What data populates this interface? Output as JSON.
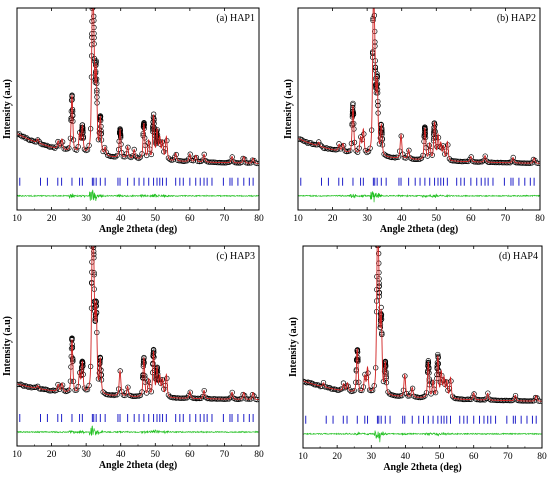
{
  "chart_data": [
    {
      "type": "scatter",
      "panel_label": "(a) HAP1",
      "xlabel": "Angle 2theta (deg)",
      "ylabel": "Intensity (a.u)",
      "xlim": [
        10,
        80
      ],
      "xticks": [
        "10",
        "20",
        "30",
        "40",
        "50",
        "60",
        "70",
        "80"
      ],
      "background": 20,
      "background_slope": 0.6,
      "peaks": [
        {
          "x": 16.0,
          "y": 3
        },
        {
          "x": 21.9,
          "y": 6
        },
        {
          "x": 23.0,
          "y": 8
        },
        {
          "x": 25.9,
          "y": 44
        },
        {
          "x": 28.1,
          "y": 14
        },
        {
          "x": 28.9,
          "y": 20
        },
        {
          "x": 31.8,
          "y": 100
        },
        {
          "x": 32.2,
          "y": 75
        },
        {
          "x": 32.9,
          "y": 62
        },
        {
          "x": 34.1,
          "y": 28
        },
        {
          "x": 35.5,
          "y": 6
        },
        {
          "x": 39.8,
          "y": 22
        },
        {
          "x": 42.0,
          "y": 9
        },
        {
          "x": 43.9,
          "y": 7
        },
        {
          "x": 46.7,
          "y": 28
        },
        {
          "x": 48.1,
          "y": 14
        },
        {
          "x": 49.5,
          "y": 34
        },
        {
          "x": 50.5,
          "y": 22
        },
        {
          "x": 51.3,
          "y": 16
        },
        {
          "x": 52.1,
          "y": 14
        },
        {
          "x": 53.2,
          "y": 18
        },
        {
          "x": 55.9,
          "y": 6
        },
        {
          "x": 60.0,
          "y": 6
        },
        {
          "x": 61.7,
          "y": 5
        },
        {
          "x": 64.1,
          "y": 6
        },
        {
          "x": 72.2,
          "y": 5
        },
        {
          "x": 75.6,
          "y": 5
        },
        {
          "x": 78.3,
          "y": 4
        }
      ],
      "reflections_2theta": [
        10.8,
        16.8,
        18.8,
        21.8,
        22.9,
        25.9,
        28.1,
        28.9,
        31.8,
        32.2,
        32.9,
        34.1,
        35.5,
        39.2,
        39.8,
        42.0,
        43.9,
        45.3,
        46.7,
        48.1,
        49.5,
        50.5,
        51.3,
        52.1,
        53.2,
        55.9,
        57.1,
        58.1,
        60.0,
        61.7,
        63.0,
        64.1,
        65.0,
        66.4,
        69.7,
        71.6,
        72.2,
        73.9,
        75.6,
        77.2,
        78.3
      ],
      "colors": {
        "observed": "#000000",
        "calculated": "#d02020",
        "reflections": "#2020c8",
        "difference": "#20c020"
      }
    },
    {
      "type": "scatter",
      "panel_label": "(b) HAP2",
      "xlabel": "Angle 2theta (deg)",
      "ylabel": "Intensity (a.u)",
      "xlim": [
        10,
        80
      ],
      "xticks": [
        "10",
        "20",
        "30",
        "40",
        "50",
        "60",
        "70",
        "80"
      ],
      "background": 16,
      "background_slope": 0.5,
      "peaks": [
        {
          "x": 16.0,
          "y": 3
        },
        {
          "x": 21.9,
          "y": 5
        },
        {
          "x": 23.0,
          "y": 6
        },
        {
          "x": 25.9,
          "y": 36
        },
        {
          "x": 28.1,
          "y": 12
        },
        {
          "x": 28.9,
          "y": 18
        },
        {
          "x": 31.8,
          "y": 100
        },
        {
          "x": 32.2,
          "y": 62
        },
        {
          "x": 32.9,
          "y": 52
        },
        {
          "x": 34.1,
          "y": 22
        },
        {
          "x": 39.8,
          "y": 18
        },
        {
          "x": 42.0,
          "y": 7
        },
        {
          "x": 46.7,
          "y": 24
        },
        {
          "x": 48.1,
          "y": 12
        },
        {
          "x": 49.5,
          "y": 28
        },
        {
          "x": 50.5,
          "y": 18
        },
        {
          "x": 51.3,
          "y": 12
        },
        {
          "x": 52.1,
          "y": 10
        },
        {
          "x": 53.2,
          "y": 14
        },
        {
          "x": 60.0,
          "y": 4
        },
        {
          "x": 64.1,
          "y": 5
        },
        {
          "x": 72.2,
          "y": 4
        },
        {
          "x": 78.3,
          "y": 4
        }
      ],
      "reflections_2theta": [
        10.8,
        16.8,
        18.8,
        21.8,
        22.9,
        25.9,
        28.1,
        28.9,
        31.8,
        32.2,
        32.9,
        34.1,
        35.5,
        39.2,
        39.8,
        42.0,
        43.9,
        45.3,
        46.7,
        48.1,
        49.5,
        50.5,
        51.3,
        52.1,
        53.2,
        55.9,
        57.1,
        58.1,
        60.0,
        61.7,
        63.0,
        64.1,
        65.0,
        66.4,
        69.7,
        71.6,
        72.2,
        73.9,
        75.6,
        77.2,
        78.3
      ],
      "colors": {
        "observed": "#000000",
        "calculated": "#d02020",
        "reflections": "#2020c8",
        "difference": "#20c020"
      }
    },
    {
      "type": "scatter",
      "panel_label": "(c) HAP3",
      "xlabel": "Angle 2theta (deg)",
      "ylabel": "Intensity (a.u)",
      "xlim": [
        10,
        80
      ],
      "xticks": [
        "10",
        "20",
        "30",
        "40",
        "50",
        "60",
        "70",
        "80"
      ],
      "background": 9,
      "background_slope": 0.4,
      "peaks": [
        {
          "x": 16.0,
          "y": 2
        },
        {
          "x": 21.9,
          "y": 5
        },
        {
          "x": 23.0,
          "y": 6
        },
        {
          "x": 25.9,
          "y": 38
        },
        {
          "x": 28.1,
          "y": 14
        },
        {
          "x": 28.9,
          "y": 22
        },
        {
          "x": 31.8,
          "y": 100
        },
        {
          "x": 32.2,
          "y": 70
        },
        {
          "x": 32.9,
          "y": 58
        },
        {
          "x": 34.1,
          "y": 24
        },
        {
          "x": 39.8,
          "y": 18
        },
        {
          "x": 42.0,
          "y": 7
        },
        {
          "x": 46.7,
          "y": 28
        },
        {
          "x": 48.1,
          "y": 12
        },
        {
          "x": 49.5,
          "y": 32
        },
        {
          "x": 50.5,
          "y": 20
        },
        {
          "x": 51.3,
          "y": 14
        },
        {
          "x": 52.1,
          "y": 12
        },
        {
          "x": 53.2,
          "y": 16
        },
        {
          "x": 60.0,
          "y": 5
        },
        {
          "x": 64.1,
          "y": 6
        },
        {
          "x": 72.2,
          "y": 5
        },
        {
          "x": 75.6,
          "y": 5
        },
        {
          "x": 78.3,
          "y": 5
        }
      ],
      "reflections_2theta": [
        10.8,
        16.8,
        18.8,
        21.8,
        22.9,
        25.9,
        28.1,
        28.9,
        31.8,
        32.2,
        32.9,
        34.1,
        35.5,
        39.2,
        39.8,
        42.0,
        43.9,
        45.3,
        46.7,
        48.1,
        49.5,
        50.5,
        51.3,
        52.1,
        53.2,
        55.9,
        57.1,
        58.1,
        60.0,
        61.7,
        63.0,
        64.1,
        65.0,
        66.4,
        69.7,
        71.6,
        72.2,
        73.9,
        75.6,
        77.2,
        78.3
      ],
      "colors": {
        "observed": "#000000",
        "calculated": "#d02020",
        "reflections": "#2020c8",
        "difference": "#20c020"
      }
    },
    {
      "type": "scatter",
      "panel_label": "(d) HAP4",
      "xlabel": "Angle 2theta (deg)",
      "ylabel": "Intensity (a.u)",
      "xlim": [
        10,
        80
      ],
      "xticks": [
        "10",
        "20",
        "30",
        "40",
        "50",
        "60",
        "70",
        "80"
      ],
      "background": 12,
      "background_slope": 0.5,
      "peaks": [
        {
          "x": 16.0,
          "y": 3
        },
        {
          "x": 21.9,
          "y": 5
        },
        {
          "x": 23.0,
          "y": 6
        },
        {
          "x": 25.9,
          "y": 32
        },
        {
          "x": 28.1,
          "y": 12
        },
        {
          "x": 28.9,
          "y": 18
        },
        {
          "x": 31.8,
          "y": 100
        },
        {
          "x": 32.2,
          "y": 64
        },
        {
          "x": 32.9,
          "y": 54
        },
        {
          "x": 34.1,
          "y": 22
        },
        {
          "x": 39.8,
          "y": 16
        },
        {
          "x": 42.0,
          "y": 7
        },
        {
          "x": 46.7,
          "y": 26
        },
        {
          "x": 48.1,
          "y": 12
        },
        {
          "x": 49.5,
          "y": 30
        },
        {
          "x": 50.5,
          "y": 18
        },
        {
          "x": 51.3,
          "y": 14
        },
        {
          "x": 52.1,
          "y": 12
        },
        {
          "x": 53.2,
          "y": 15
        },
        {
          "x": 60.0,
          "y": 5
        },
        {
          "x": 64.1,
          "y": 5
        },
        {
          "x": 72.2,
          "y": 4
        },
        {
          "x": 78.3,
          "y": 4
        }
      ],
      "reflections_2theta": [
        10.8,
        16.8,
        18.8,
        21.8,
        22.9,
        25.9,
        28.1,
        28.9,
        31.8,
        32.2,
        32.9,
        34.1,
        35.5,
        39.2,
        39.8,
        42.0,
        43.9,
        45.3,
        46.7,
        48.1,
        49.5,
        50.5,
        51.3,
        52.1,
        53.2,
        55.9,
        57.1,
        58.1,
        60.0,
        61.7,
        63.0,
        64.1,
        65.0,
        66.4,
        69.7,
        71.6,
        72.2,
        73.9,
        75.6,
        77.2,
        78.3
      ],
      "colors": {
        "observed": "#000000",
        "calculated": "#d02020",
        "reflections": "#2020c8",
        "difference": "#20c020"
      }
    }
  ]
}
